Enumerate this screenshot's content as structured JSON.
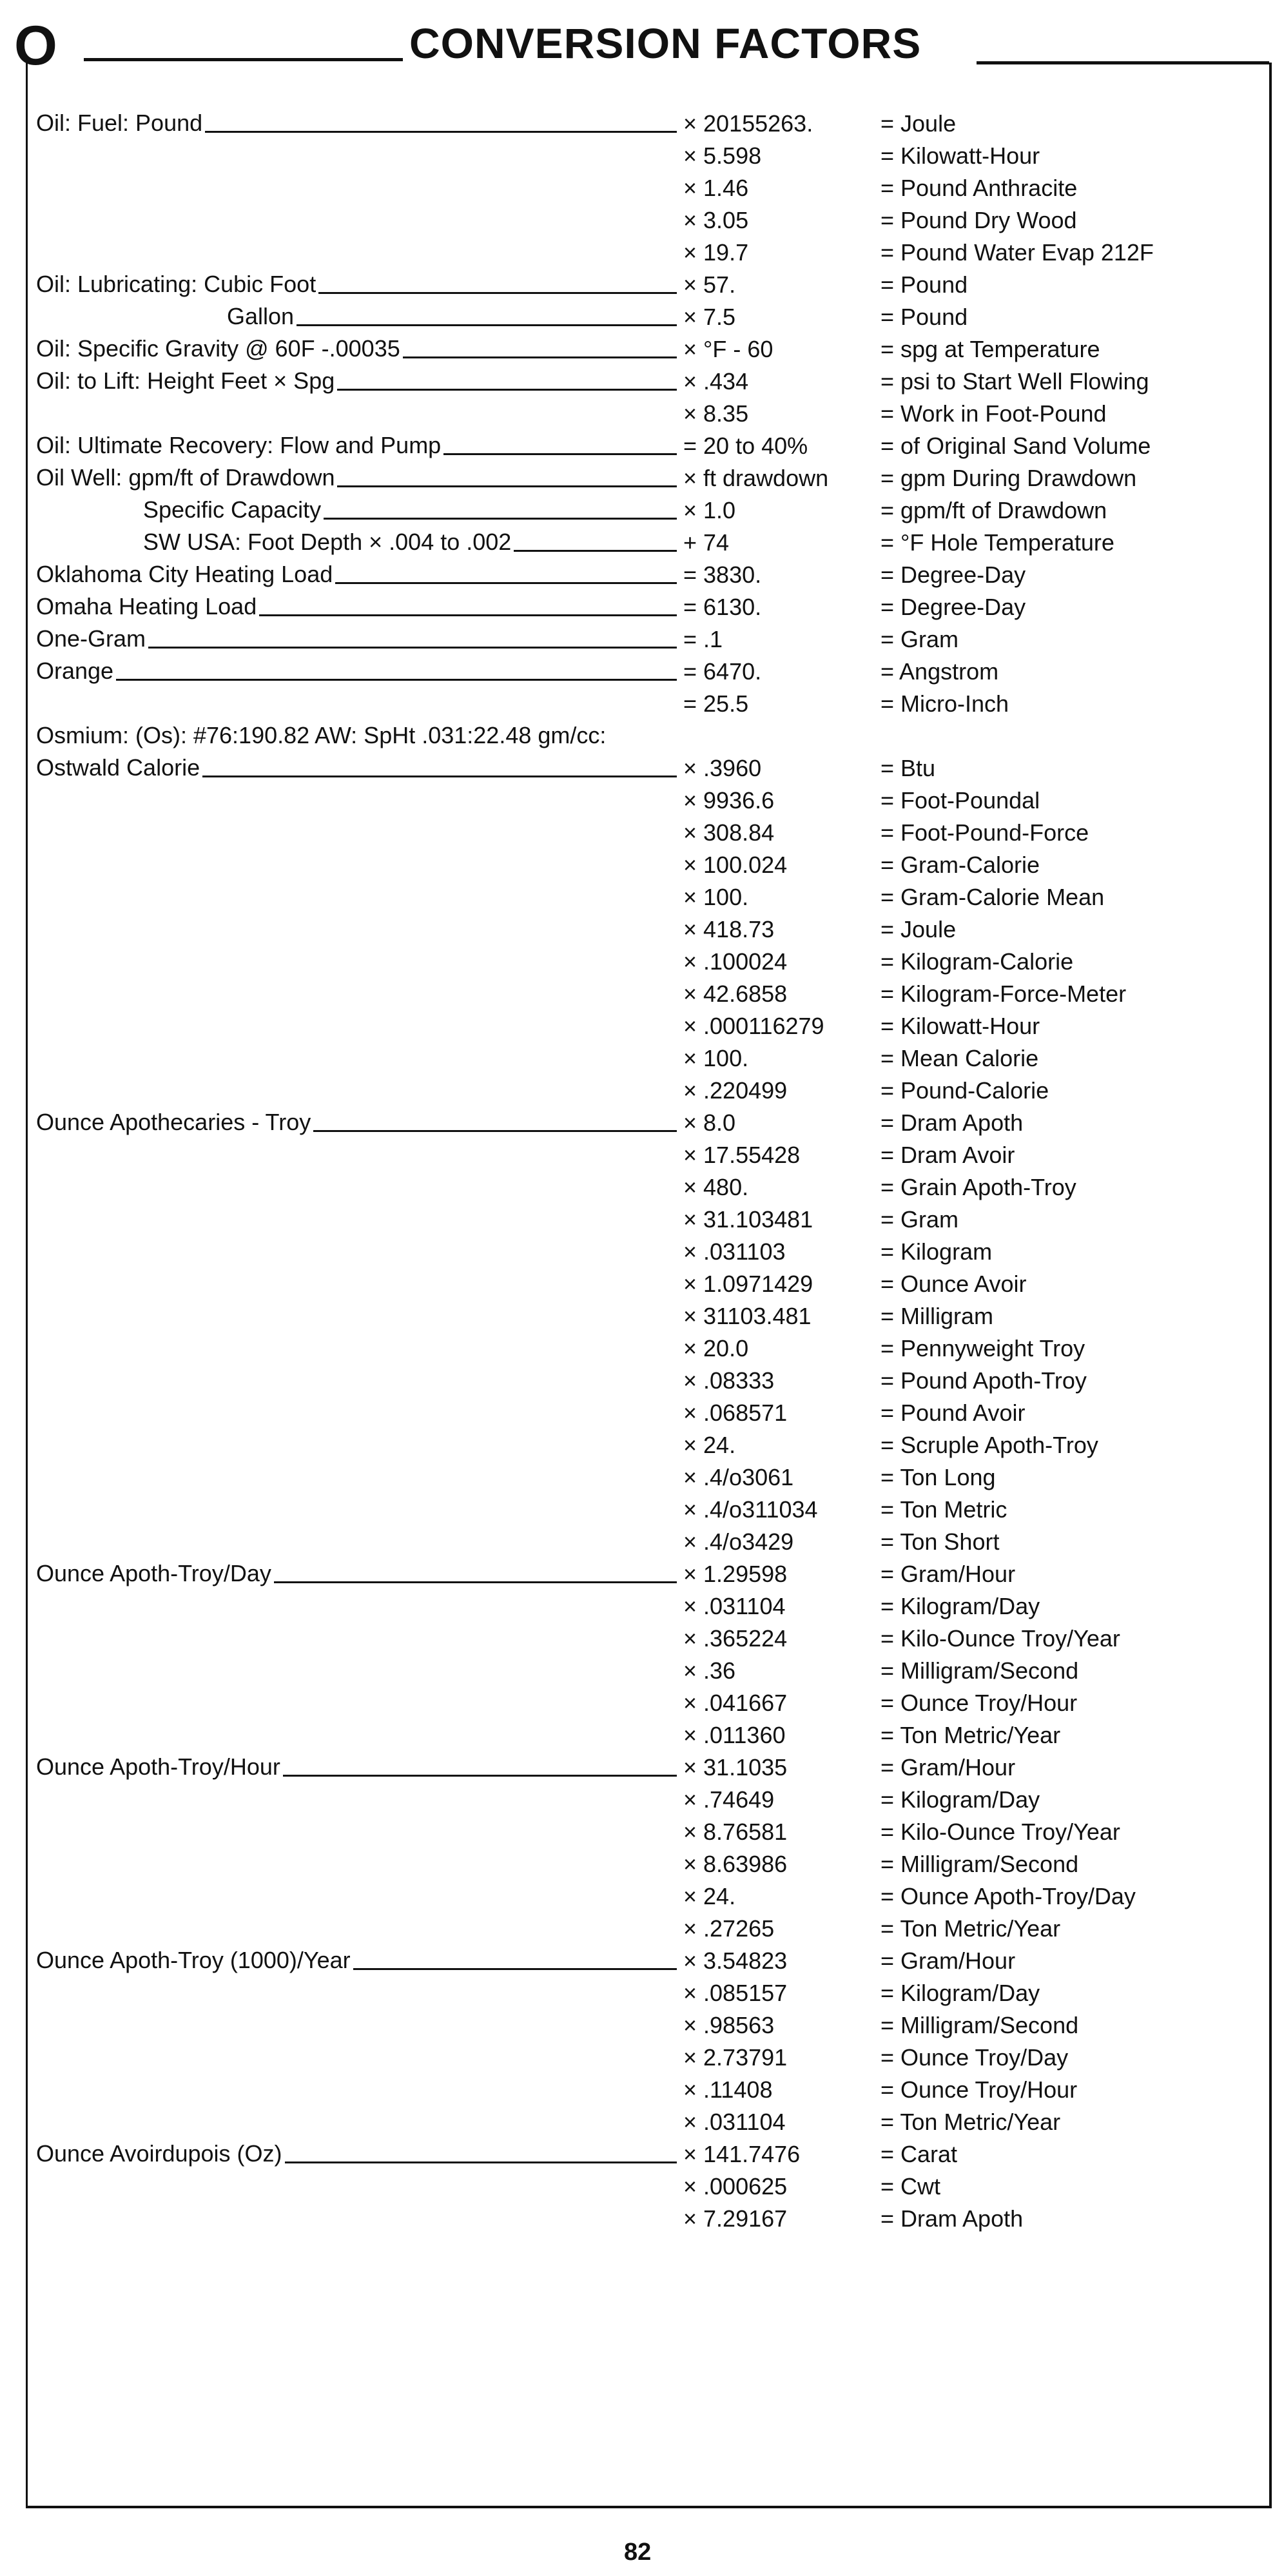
{
  "header": {
    "letter": "O",
    "title": "CONVERSION FACTORS"
  },
  "page_number": "82",
  "rows": [
    {
      "label": "Oil: Fuel: Pound",
      "indent": 0,
      "factor": "× 20155263.",
      "result": "= Joule"
    },
    {
      "label": "",
      "indent": 0,
      "factor": "× 5.598",
      "result": "= Kilowatt-Hour"
    },
    {
      "label": "",
      "indent": 0,
      "factor": "× 1.46",
      "result": "= Pound Anthracite"
    },
    {
      "label": "",
      "indent": 0,
      "factor": "× 3.05",
      "result": "= Pound Dry Wood"
    },
    {
      "label": "",
      "indent": 0,
      "factor": "× 19.7",
      "result": "= Pound Water Evap 212F"
    },
    {
      "label": "Oil: Lubricating: Cubic Foot",
      "indent": 0,
      "factor": "× 57.",
      "result": "= Pound"
    },
    {
      "label": "Gallon",
      "indent": 2,
      "factor": "× 7.5",
      "result": "= Pound"
    },
    {
      "label": "Oil: Specific Gravity @ 60F -.00035",
      "indent": 0,
      "factor": "× °F - 60",
      "result": "= spg at Temperature"
    },
    {
      "label": "Oil: to Lift: Height Feet × Spg",
      "indent": 0,
      "factor": "× .434",
      "result": "= psi to Start Well Flowing"
    },
    {
      "label": "",
      "indent": 0,
      "factor": "× 8.35",
      "result": "= Work in Foot-Pound"
    },
    {
      "label": "Oil: Ultimate Recovery: Flow and Pump",
      "indent": 0,
      "factor": "= 20 to 40%",
      "result": "= of Original Sand Volume"
    },
    {
      "label": "Oil Well: gpm/ft of Drawdown",
      "indent": 0,
      "factor": "× ft drawdown",
      "result": "= gpm During Drawdown"
    },
    {
      "label": "Specific Capacity",
      "indent": 1,
      "factor": "× 1.0",
      "result": "= gpm/ft of Drawdown"
    },
    {
      "label": "SW USA: Foot Depth × .004 to .002",
      "indent": 1,
      "factor": "+ 74",
      "result": "= °F Hole Temperature"
    },
    {
      "label": "Oklahoma City Heating Load",
      "indent": 0,
      "factor": "= 3830.",
      "result": "= Degree-Day"
    },
    {
      "label": "Omaha Heating Load",
      "indent": 0,
      "factor": "= 6130.",
      "result": "= Degree-Day"
    },
    {
      "label": "One-Gram",
      "indent": 0,
      "factor": "= .1",
      "result": "= Gram"
    },
    {
      "label": "Orange",
      "indent": 0,
      "factor": "= 6470.",
      "result": "= Angstrom"
    },
    {
      "label": "",
      "indent": 0,
      "factor": "= 25.5",
      "result": "= Micro-Inch"
    },
    {
      "label": "Osmium: (Os): #76:190.82 AW: SpHt .031:22.48 gm/cc:",
      "indent": 0,
      "factor": "",
      "result": "",
      "noleader": true
    },
    {
      "label": "Ostwald Calorie",
      "indent": 0,
      "factor": "× .3960",
      "result": "= Btu"
    },
    {
      "label": "",
      "indent": 0,
      "factor": "× 9936.6",
      "result": "= Foot-Poundal"
    },
    {
      "label": "",
      "indent": 0,
      "factor": "× 308.84",
      "result": "= Foot-Pound-Force"
    },
    {
      "label": "",
      "indent": 0,
      "factor": "× 100.024",
      "result": "= Gram-Calorie"
    },
    {
      "label": "",
      "indent": 0,
      "factor": "× 100.",
      "result": "= Gram-Calorie Mean"
    },
    {
      "label": "",
      "indent": 0,
      "factor": "× 418.73",
      "result": "= Joule"
    },
    {
      "label": "",
      "indent": 0,
      "factor": "× .100024",
      "result": "= Kilogram-Calorie"
    },
    {
      "label": "",
      "indent": 0,
      "factor": "× 42.6858",
      "result": "= Kilogram-Force-Meter"
    },
    {
      "label": "",
      "indent": 0,
      "factor": "× .000116279",
      "result": "= Kilowatt-Hour"
    },
    {
      "label": "",
      "indent": 0,
      "factor": "× 100.",
      "result": "= Mean Calorie"
    },
    {
      "label": "",
      "indent": 0,
      "factor": "× .220499",
      "result": "= Pound-Calorie"
    },
    {
      "label": "Ounce Apothecaries - Troy",
      "indent": 0,
      "factor": "× 8.0",
      "result": "= Dram Apoth"
    },
    {
      "label": "",
      "indent": 0,
      "factor": "× 17.55428",
      "result": "= Dram Avoir"
    },
    {
      "label": "",
      "indent": 0,
      "factor": "× 480.",
      "result": "= Grain Apoth-Troy"
    },
    {
      "label": "",
      "indent": 0,
      "factor": "× 31.103481",
      "result": "= Gram"
    },
    {
      "label": "",
      "indent": 0,
      "factor": "× .031103",
      "result": "= Kilogram"
    },
    {
      "label": "",
      "indent": 0,
      "factor": "× 1.0971429",
      "result": "= Ounce Avoir"
    },
    {
      "label": "",
      "indent": 0,
      "factor": "× 31103.481",
      "result": "= Milligram"
    },
    {
      "label": "",
      "indent": 0,
      "factor": "× 20.0",
      "result": "= Pennyweight Troy"
    },
    {
      "label": "",
      "indent": 0,
      "factor": "× .08333",
      "result": "= Pound Apoth-Troy"
    },
    {
      "label": "",
      "indent": 0,
      "factor": "× .068571",
      "result": "= Pound Avoir"
    },
    {
      "label": "",
      "indent": 0,
      "factor": "× 24.",
      "result": "= Scruple Apoth-Troy"
    },
    {
      "label": "",
      "indent": 0,
      "factor": "× .4/o3061",
      "result": "= Ton Long"
    },
    {
      "label": "",
      "indent": 0,
      "factor": "× .4/o311034",
      "result": "= Ton Metric"
    },
    {
      "label": "",
      "indent": 0,
      "factor": "× .4/o3429",
      "result": "= Ton Short"
    },
    {
      "label": "Ounce Apoth-Troy/Day",
      "indent": 0,
      "factor": "× 1.29598",
      "result": "= Gram/Hour"
    },
    {
      "label": "",
      "indent": 0,
      "factor": "× .031104",
      "result": "= Kilogram/Day"
    },
    {
      "label": "",
      "indent": 0,
      "factor": "× .365224",
      "result": "= Kilo-Ounce Troy/Year"
    },
    {
      "label": "",
      "indent": 0,
      "factor": "× .36",
      "result": "= Milligram/Second"
    },
    {
      "label": "",
      "indent": 0,
      "factor": "× .041667",
      "result": "= Ounce Troy/Hour"
    },
    {
      "label": "",
      "indent": 0,
      "factor": "× .011360",
      "result": "= Ton Metric/Year"
    },
    {
      "label": "Ounce Apoth-Troy/Hour",
      "indent": 0,
      "factor": "× 31.1035",
      "result": "= Gram/Hour"
    },
    {
      "label": "",
      "indent": 0,
      "factor": "× .74649",
      "result": "= Kilogram/Day"
    },
    {
      "label": "",
      "indent": 0,
      "factor": "× 8.76581",
      "result": "= Kilo-Ounce Troy/Year"
    },
    {
      "label": "",
      "indent": 0,
      "factor": "× 8.63986",
      "result": "= Milligram/Second"
    },
    {
      "label": "",
      "indent": 0,
      "factor": "× 24.",
      "result": "= Ounce Apoth-Troy/Day"
    },
    {
      "label": "",
      "indent": 0,
      "factor": "× .27265",
      "result": "= Ton Metric/Year"
    },
    {
      "label": "Ounce Apoth-Troy (1000)/Year",
      "indent": 0,
      "factor": "× 3.54823",
      "result": "= Gram/Hour"
    },
    {
      "label": "",
      "indent": 0,
      "factor": "× .085157",
      "result": "= Kilogram/Day"
    },
    {
      "label": "",
      "indent": 0,
      "factor": "× .98563",
      "result": "= Milligram/Second"
    },
    {
      "label": "",
      "indent": 0,
      "factor": "× 2.73791",
      "result": "= Ounce Troy/Day"
    },
    {
      "label": "",
      "indent": 0,
      "factor": "× .11408",
      "result": "= Ounce Troy/Hour"
    },
    {
      "label": "",
      "indent": 0,
      "factor": "× .031104",
      "result": "= Ton Metric/Year"
    },
    {
      "label": "Ounce Avoirdupois (Oz)",
      "indent": 0,
      "factor": "× 141.7476",
      "result": "= Carat"
    },
    {
      "label": "",
      "indent": 0,
      "factor": "× .000625",
      "result": "= Cwt"
    },
    {
      "label": "",
      "indent": 0,
      "factor": "× 7.29167",
      "result": "= Dram Apoth"
    }
  ]
}
